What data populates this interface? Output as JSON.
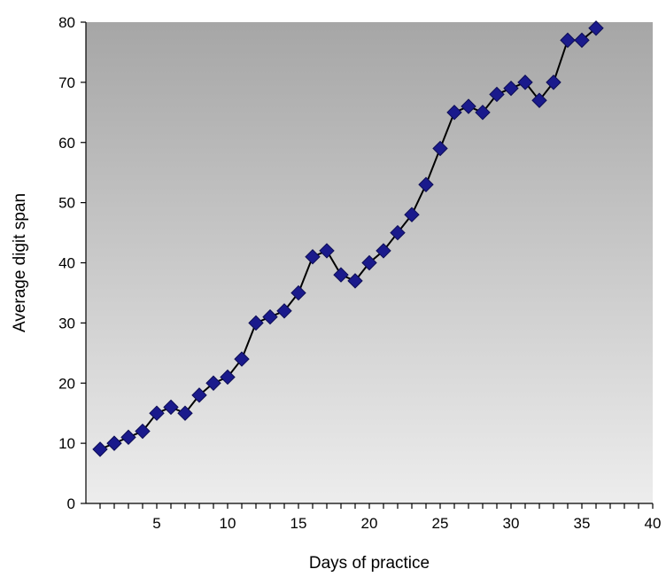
{
  "chart_data": {
    "type": "line",
    "xlabel": "Days of practice",
    "ylabel": "Average digit span",
    "xlim": [
      0,
      40
    ],
    "ylim": [
      0,
      80
    ],
    "xticks": [
      5,
      10,
      15,
      20,
      25,
      30,
      35,
      40
    ],
    "yticks": [
      0,
      10,
      20,
      30,
      40,
      50,
      60,
      70,
      80
    ],
    "grid": false,
    "legend": "none",
    "marker": "diamond",
    "colors": {
      "marker_fill": "#1a1a8c",
      "marker_stroke": "#0c0c55",
      "line": "#000000",
      "plot_bg_top": "#a6a6a6",
      "plot_bg_bottom": "#ededed"
    },
    "series": [
      {
        "x": [
          1,
          2,
          3,
          4,
          5,
          6,
          7,
          8,
          9,
          10,
          11,
          12,
          13,
          14,
          15,
          16,
          17,
          18,
          19,
          20,
          21,
          22,
          23,
          24,
          25,
          26,
          27,
          28,
          29,
          30,
          31,
          32,
          33,
          34,
          35,
          36
        ],
        "values": [
          9,
          10,
          11,
          12,
          15,
          16,
          15,
          18,
          20,
          21,
          24,
          30,
          31,
          32,
          35,
          41,
          42,
          38,
          37,
          40,
          42,
          45,
          48,
          53,
          59,
          65,
          66,
          65,
          68,
          69,
          70,
          67,
          70,
          77,
          77,
          79
        ]
      }
    ]
  }
}
